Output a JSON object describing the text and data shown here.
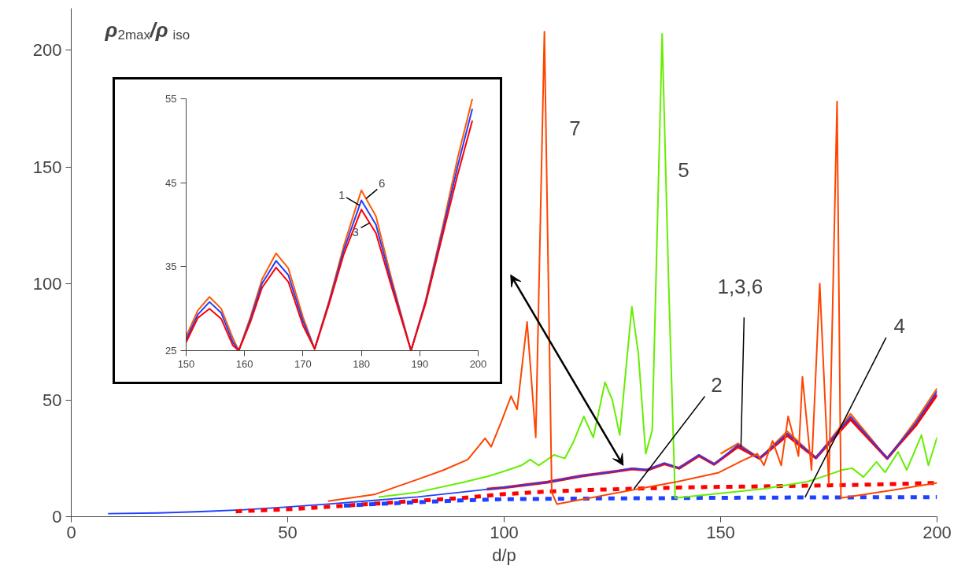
{
  "chart_data": [
    {
      "type": "line",
      "xlabel": "d/p",
      "ylabel": "ρ$_{2max}$/ρ$_{iso}$",
      "xlim": [
        0,
        200
      ],
      "xticks": [
        0,
        50,
        100,
        150,
        200
      ],
      "ylim": [
        0,
        218
      ],
      "yticks": [
        0,
        50,
        100,
        150,
        200
      ],
      "series": [
        {
          "color": "#2040ff",
          "line_style": "solid",
          "x": [
            8.5,
            20,
            30,
            40,
            50,
            60,
            70,
            80,
            90,
            100,
            110,
            118,
            122,
            126,
            129.6,
            133,
            137,
            140.4,
            145,
            148.5,
            154,
            159,
            165.4,
            172,
            180,
            188.5,
            191,
            195,
            200
          ],
          "values": [
            1.3,
            1.6,
            2.2,
            3,
            4.2,
            5.5,
            7,
            8.5,
            10.5,
            12.5,
            14.8,
            17.5,
            18.5,
            19.5,
            20.8,
            20,
            23,
            20.8,
            26.5,
            22.5,
            30.8,
            25,
            35.7,
            25.2,
            42.9,
            25,
            30.8,
            40,
            53.8
          ]
        },
        {
          "color": "#ff0000",
          "line_style": "solid",
          "x": [
            96,
            100,
            110,
            118,
            122,
            126,
            129.6,
            133,
            137,
            140.4,
            145,
            148.5,
            154,
            159,
            165.4,
            172,
            180,
            188.5,
            191,
            195,
            200
          ],
          "values": [
            11.8,
            12.5,
            14.8,
            17.5,
            18.5,
            19.5,
            20.5,
            20,
            22.7,
            20.8,
            26.2,
            22.5,
            30,
            25,
            34.9,
            25.2,
            41.8,
            25,
            30.6,
            39,
            52.4
          ]
        },
        {
          "color": "#ff5a00",
          "line_style": "solid",
          "x": [
            150,
            154,
            159,
            165.4,
            172,
            180,
            188.5,
            191,
            195,
            200
          ],
          "values": [
            27,
            31.4,
            25,
            36.6,
            25.2,
            44.1,
            25,
            31,
            41,
            55
          ]
        },
        {
          "color": "#ff0000",
          "line_style": "dashed",
          "x": [
            38,
            50,
            60,
            70,
            80,
            90,
            100,
            110,
            120,
            130,
            140,
            150,
            160,
            170,
            180,
            190,
            200
          ],
          "values": [
            2.3,
            3.2,
            4.3,
            5.6,
            6.8,
            8,
            9.7,
            10.8,
            11.5,
            12,
            12.5,
            12.8,
            13,
            13.3,
            13.6,
            14,
            14.5
          ]
        },
        {
          "color": "#2040ff",
          "line_style": "dashed",
          "x": [
            63,
            70,
            80,
            90,
            100,
            120,
            140,
            160,
            180,
            200
          ],
          "values": [
            4.7,
            5.4,
            6.2,
            7,
            7.5,
            7.8,
            8,
            8.2,
            8.3,
            8.4
          ]
        },
        {
          "color": "#66ee00",
          "line_style": "solid",
          "x": [
            71,
            80,
            90,
            96.4,
            100,
            104,
            106,
            108,
            111.5,
            114,
            116,
            118.4,
            120.6,
            123.3,
            125,
            126.7,
            129.5,
            131,
            132.7,
            134.2,
            136.5,
            138,
            139.5,
            150,
            160,
            165,
            170,
            175,
            178,
            180.4,
            183,
            186,
            188,
            191,
            193,
            196.4,
            198,
            200
          ],
          "values": [
            8.4,
            10.5,
            14.5,
            17.4,
            19.5,
            22,
            24.5,
            22,
            26.5,
            25,
            32,
            43,
            34,
            57.7,
            50,
            35,
            90,
            70,
            27,
            37,
            207,
            100,
            8,
            10,
            12,
            13.5,
            15,
            18,
            20,
            20.8,
            17,
            23.5,
            19,
            27.8,
            20,
            35,
            22,
            34
          ]
        },
        {
          "color": "#ff4500",
          "line_style": "solid",
          "x": [
            59.3,
            70,
            80,
            86,
            91.6,
            95.6,
            97,
            99.4,
            101.6,
            103,
            105.3,
            107.3,
            109.3,
            111,
            112.2,
            130.4,
            140,
            149.4,
            155,
            158.5,
            160,
            162,
            164,
            165.6,
            168,
            168.9,
            171,
            172.9,
            175,
            176.9,
            177.8,
            190,
            200
          ],
          "values": [
            6.7,
            9.5,
            16,
            20,
            24.5,
            33.6,
            30,
            41,
            51.7,
            46,
            83.5,
            34,
            208,
            10.4,
            5.4,
            11.7,
            15,
            18.8,
            24,
            27,
            22,
            32.5,
            22,
            43,
            26,
            60,
            20,
            100,
            14,
            178,
            8,
            11.5,
            14.5
          ]
        }
      ],
      "annotations": [
        "7",
        "5",
        {
          "text": "1,3,6",
          "x": 154.7,
          "y": 30
        },
        {
          "text": "2",
          "x": 130,
          "y": 12
        },
        {
          "text": "4",
          "x": 169.5,
          "y": 8.3
        }
      ]
    },
    {
      "type": "line",
      "xlim": [
        150,
        200
      ],
      "xticks": [
        150,
        160,
        170,
        180,
        190,
        200
      ],
      "ylim": [
        25,
        55
      ],
      "yticks": [
        25,
        35,
        45,
        55
      ],
      "series": [
        {
          "color": "#ff5a00",
          "line_style": "solid",
          "x": [
            150,
            152,
            154,
            156,
            158,
            159,
            161,
            163,
            165.4,
            167.5,
            170,
            172,
            174.5,
            177,
            180,
            182.5,
            185,
            188.5,
            191,
            194,
            196.5,
            199
          ],
          "values": [
            26.7,
            29.8,
            31.4,
            30,
            26.5,
            25,
            29,
            33.5,
            36.6,
            34.8,
            29,
            25.2,
            31,
            37.5,
            44.1,
            41,
            34,
            25,
            31,
            40,
            48,
            55
          ]
        },
        {
          "color": "#2040ff",
          "line_style": "solid",
          "x": [
            150,
            152,
            154,
            156,
            158,
            159,
            161,
            163,
            165.4,
            167.5,
            170,
            172,
            174.5,
            177,
            180,
            182.5,
            185,
            188.5,
            191,
            194,
            196.5,
            199
          ],
          "values": [
            26.3,
            29.3,
            30.8,
            29.5,
            26,
            25,
            28.7,
            33,
            35.7,
            34,
            28.5,
            25.2,
            30.8,
            37,
            42.9,
            40,
            33.5,
            25,
            30.8,
            39.5,
            47,
            53.8
          ]
        },
        {
          "color": "#ff0000",
          "line_style": "solid",
          "x": [
            150,
            152,
            154,
            156,
            158,
            159,
            161,
            163,
            165.4,
            167.5,
            170,
            172,
            174.5,
            177,
            180,
            182.5,
            185,
            188.5,
            191,
            194,
            196.5,
            199
          ],
          "values": [
            26,
            28.9,
            30,
            28.8,
            25.6,
            25,
            28.4,
            32.5,
            34.9,
            33.2,
            28,
            25.2,
            30.6,
            36.5,
            41.8,
            39,
            33,
            25,
            30.6,
            39,
            46,
            52.4
          ]
        }
      ],
      "annotations": [
        {
          "text": "1",
          "x": 179.7,
          "y": 42.3
        },
        {
          "text": "6",
          "x": 180.8,
          "y": 43.1
        },
        {
          "text": "3",
          "x": 181.4,
          "y": 40.2
        }
      ]
    }
  ]
}
